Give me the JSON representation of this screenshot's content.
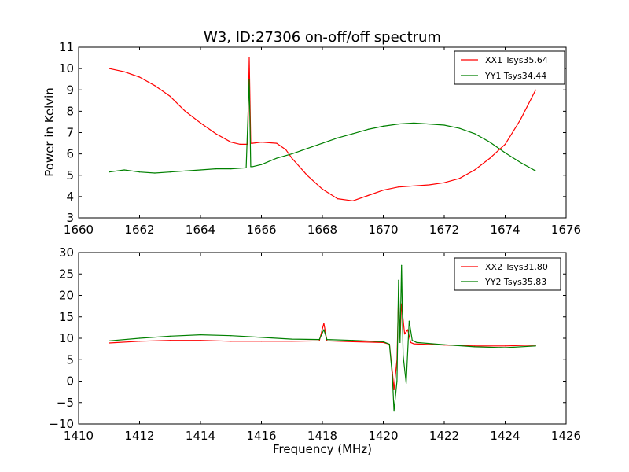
{
  "figure_title": "W3, ID:27306 on-off/off spectrum",
  "ylabel": "Power in Kelvin",
  "xlabel": "Frequency (MHz)",
  "colors": {
    "red": "#ff0000",
    "green": "#008000"
  },
  "legend_top": [
    {
      "text": "XX1 Tsys35.64",
      "color": "#ff0000"
    },
    {
      "text": "YY1 Tsys34.44",
      "color": "#008000"
    }
  ],
  "legend_bottom": [
    {
      "text": "XX2 Tsys31.80",
      "color": "#ff0000"
    },
    {
      "text": "YY2 Tsys35.83",
      "color": "#008000"
    }
  ],
  "chart_data": [
    {
      "type": "line",
      "title": "W3, ID:27306 on-off/off spectrum",
      "xlabel": "",
      "ylabel": "Power in Kelvin",
      "xlim": [
        1660,
        1676
      ],
      "ylim": [
        3,
        11
      ],
      "xticks": [
        1660,
        1662,
        1664,
        1666,
        1668,
        1670,
        1672,
        1674,
        1676
      ],
      "yticks": [
        3,
        4,
        5,
        6,
        7,
        8,
        9,
        10,
        11
      ],
      "grid": false,
      "legend_position": "top-right",
      "series": [
        {
          "name": "XX1 Tsys35.64",
          "color": "#ff0000",
          "x": [
            1661.0,
            1661.5,
            1662.0,
            1662.5,
            1663.0,
            1663.5,
            1664.0,
            1664.5,
            1665.0,
            1665.3,
            1665.55,
            1665.6,
            1665.65,
            1665.7,
            1666.0,
            1666.5,
            1666.8,
            1667.0,
            1667.5,
            1668.0,
            1668.5,
            1669.0,
            1669.5,
            1670.0,
            1670.5,
            1671.0,
            1671.5,
            1672.0,
            1672.5,
            1673.0,
            1673.5,
            1674.0,
            1674.5,
            1675.0
          ],
          "values": [
            10.0,
            9.85,
            9.6,
            9.2,
            8.7,
            8.0,
            7.45,
            6.95,
            6.55,
            6.45,
            6.45,
            10.5,
            6.5,
            6.5,
            6.55,
            6.5,
            6.2,
            5.8,
            5.0,
            4.35,
            3.9,
            3.8,
            4.05,
            4.3,
            4.45,
            4.5,
            4.55,
            4.65,
            4.85,
            5.25,
            5.8,
            6.45,
            7.6,
            9.0
          ]
        },
        {
          "name": "YY1 Tsys34.44",
          "color": "#008000",
          "x": [
            1661.0,
            1661.5,
            1662.0,
            1662.5,
            1663.0,
            1663.5,
            1664.0,
            1664.5,
            1665.0,
            1665.5,
            1665.6,
            1665.65,
            1665.7,
            1666.0,
            1666.5,
            1667.0,
            1667.5,
            1668.0,
            1668.5,
            1669.0,
            1669.5,
            1670.0,
            1670.5,
            1671.0,
            1671.5,
            1672.0,
            1672.5,
            1673.0,
            1673.5,
            1674.0,
            1674.5,
            1675.0
          ],
          "values": [
            5.15,
            5.25,
            5.15,
            5.1,
            5.15,
            5.2,
            5.25,
            5.3,
            5.3,
            5.35,
            9.5,
            5.4,
            5.4,
            5.5,
            5.8,
            6.0,
            6.25,
            6.5,
            6.75,
            6.95,
            7.15,
            7.3,
            7.4,
            7.45,
            7.4,
            7.35,
            7.2,
            6.95,
            6.55,
            6.05,
            5.6,
            5.2
          ]
        }
      ]
    },
    {
      "type": "line",
      "title": "",
      "xlabel": "Frequency (MHz)",
      "ylabel": "",
      "xlim": [
        1410,
        1426
      ],
      "ylim": [
        -10,
        30
      ],
      "xticks": [
        1410,
        1412,
        1414,
        1416,
        1418,
        1420,
        1422,
        1424,
        1426
      ],
      "yticks": [
        -10,
        -5,
        0,
        5,
        10,
        15,
        20,
        25,
        30
      ],
      "grid": false,
      "legend_position": "top-right",
      "series": [
        {
          "name": "XX2 Tsys31.80",
          "color": "#ff0000",
          "x": [
            1411.0,
            1412.0,
            1413.0,
            1414.0,
            1415.0,
            1416.0,
            1417.0,
            1417.9,
            1418.05,
            1418.15,
            1419.0,
            1420.0,
            1420.2,
            1420.3,
            1420.35,
            1420.45,
            1420.5,
            1420.55,
            1420.6,
            1420.7,
            1420.8,
            1420.9,
            1421.0,
            1422.0,
            1423.0,
            1424.0,
            1425.0
          ],
          "values": [
            8.9,
            9.3,
            9.5,
            9.5,
            9.3,
            9.3,
            9.3,
            9.4,
            13.5,
            9.4,
            9.2,
            9.0,
            8.6,
            2.0,
            -2.0,
            5.0,
            20.0,
            10.0,
            18.0,
            11.0,
            12.0,
            9.0,
            8.7,
            8.4,
            8.2,
            8.2,
            8.4
          ]
        },
        {
          "name": "YY2 Tsys35.83",
          "color": "#008000",
          "x": [
            1411.0,
            1412.0,
            1413.0,
            1414.0,
            1415.0,
            1416.0,
            1417.0,
            1417.9,
            1418.05,
            1418.15,
            1419.0,
            1420.0,
            1420.2,
            1420.3,
            1420.35,
            1420.45,
            1420.5,
            1420.55,
            1420.6,
            1420.65,
            1420.75,
            1420.85,
            1420.95,
            1421.1,
            1422.0,
            1423.0,
            1424.0,
            1425.0
          ],
          "values": [
            9.4,
            10.0,
            10.5,
            10.8,
            10.6,
            10.2,
            9.8,
            9.7,
            12.0,
            9.7,
            9.5,
            9.2,
            8.6,
            1.0,
            -7.0,
            0.0,
            23.5,
            9.0,
            27.0,
            6.0,
            -0.5,
            14.0,
            9.5,
            9.0,
            8.5,
            8.0,
            7.8,
            8.2
          ]
        }
      ]
    }
  ]
}
